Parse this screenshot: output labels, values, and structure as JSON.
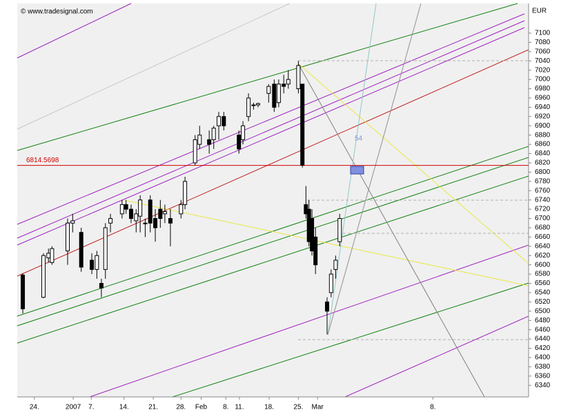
{
  "chart_data": {
    "type": "candlestick",
    "copyright": "© www.tradesignal.com",
    "currency": "EUR",
    "hline": {
      "value": 6814.5698,
      "label": "6814.5698",
      "color": "#d00000"
    },
    "annotation": "54",
    "up_color": "#ffffff",
    "down_color": "#000000",
    "x": [
      0,
      4.1,
      5.1,
      5.8,
      8.9,
      9.9,
      11.6,
      13.7,
      14.7,
      15.6,
      16.4,
      17.4,
      19.7,
      20.5,
      21.5,
      22.5,
      23.3,
      24.3,
      25.3,
      26.3,
      27.3,
      28.2,
      29.3,
      31.4,
      32.2,
      34.2,
      35.1,
      37.0,
      37.9,
      38.9,
      39.9,
      42.9,
      43.7,
      44.8,
      45.8,
      46.7,
      48.8,
      49.9,
      50.8,
      51.8,
      52.7,
      54.7,
      55.5,
      56.2,
      56.8,
      57.4,
      58.1,
      60.4,
      61.2,
      62.1,
      62.9
    ],
    "open": [
      6578,
      6530,
      6615,
      6605,
      6630,
      6690,
      6670,
      6610,
      6590,
      6560,
      6590,
      6690,
      6710,
      6730,
      6720,
      6695,
      6705,
      6690,
      6740,
      6700,
      6720,
      6710,
      6700,
      6710,
      6730,
      6820,
      6860,
      6870,
      6870,
      6900,
      6920,
      6880,
      6870,
      6920,
      6945,
      6945,
      6970,
      6990,
      6950,
      6990,
      6990,
      6980,
      6990,
      6730,
      6720,
      6700,
      6660,
      6520,
      6540,
      6590,
      6650
    ],
    "high": [
      6582,
      6625,
      6635,
      6640,
      6700,
      6710,
      6680,
      6625,
      6630,
      6570,
      6690,
      6710,
      6740,
      6740,
      6730,
      6720,
      6750,
      6700,
      6750,
      6720,
      6740,
      6730,
      6720,
      6740,
      6790,
      6880,
      6900,
      6890,
      6900,
      6930,
      6930,
      6890,
      6910,
      6970,
      6950,
      6950,
      6990,
      7000,
      7000,
      7010,
      7020,
      7040,
      6990,
      6770,
      6740,
      6720,
      6680,
      6530,
      6590,
      6620,
      6710
    ],
    "low": [
      6495,
      6528,
      6605,
      6600,
      6600,
      6670,
      6585,
      6580,
      6570,
      6530,
      6570,
      6670,
      6700,
      6710,
      6690,
      6670,
      6670,
      6660,
      6670,
      6650,
      6680,
      6690,
      6640,
      6700,
      6720,
      6815,
      6850,
      6840,
      6850,
      6870,
      6890,
      6840,
      6860,
      6910,
      6935,
      6940,
      6950,
      6930,
      6940,
      6970,
      6980,
      6970,
      6810,
      6700,
      6640,
      6620,
      6580,
      6450,
      6530,
      6570,
      6640
    ],
    "close": [
      6505,
      6620,
      6625,
      6635,
      6690,
      6695,
      6595,
      6590,
      6620,
      6550,
      6680,
      6700,
      6730,
      6720,
      6700,
      6710,
      6740,
      6690,
      6690,
      6680,
      6700,
      6715,
      6690,
      6730,
      6780,
      6870,
      6880,
      6860,
      6895,
      6920,
      6900,
      6850,
      6900,
      6960,
      6945,
      6948,
      6985,
      6940,
      6990,
      6985,
      7000,
      7030,
      6815,
      6710,
      6650,
      6630,
      6600,
      6500,
      6580,
      6610,
      6700
    ],
    "xlim": [
      -1.1,
      100.4
    ],
    "xticks": [
      {
        "value": 2.3,
        "label": "24."
      },
      {
        "value": 10.0,
        "label": "2007"
      },
      {
        "value": 13.6,
        "label": "7."
      },
      {
        "value": 20.1,
        "label": "14."
      },
      {
        "value": 25.9,
        "label": "21."
      },
      {
        "value": 31.4,
        "label": "28."
      },
      {
        "value": 35.4,
        "label": "Feb"
      },
      {
        "value": 40.3,
        "label": "8."
      },
      {
        "value": 43.0,
        "label": "11."
      },
      {
        "value": 48.9,
        "label": "18."
      },
      {
        "value": 54.7,
        "label": "25."
      },
      {
        "value": 58.5,
        "label": "Mar"
      },
      {
        "value": 81.4,
        "label": "8."
      }
    ],
    "ylim": [
      6315,
      7164
    ],
    "yticks": [
      7100,
      7080,
      7060,
      7040,
      7020,
      7000,
      6980,
      6960,
      6940,
      6920,
      6900,
      6880,
      6860,
      6840,
      6820,
      6800,
      6780,
      6760,
      6740,
      6720,
      6700,
      6680,
      6660,
      6640,
      6620,
      6600,
      6580,
      6560,
      6540,
      6520,
      6500,
      6480,
      6460,
      6440,
      6420,
      6400,
      6380,
      6360,
      6340
    ]
  }
}
